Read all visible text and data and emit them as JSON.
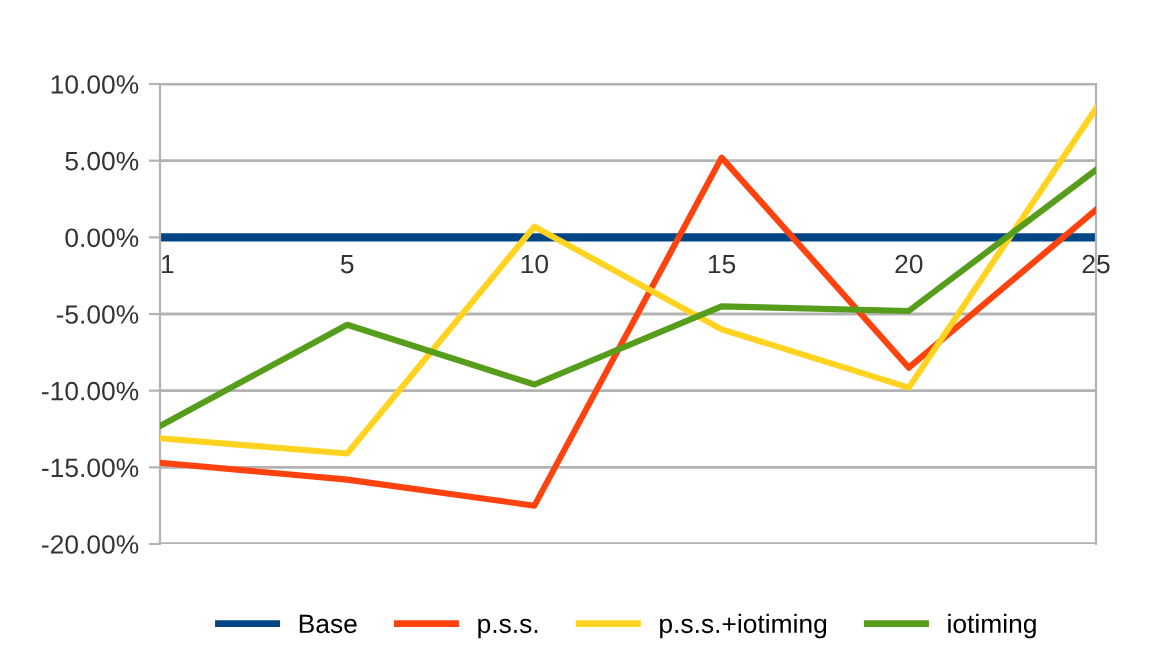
{
  "chart_data": {
    "type": "line",
    "categories": [
      "1",
      "5",
      "10",
      "15",
      "20",
      "25"
    ],
    "series": [
      {
        "name": "Base",
        "color": "#004586",
        "values": [
          0,
          0,
          0,
          0,
          0,
          0
        ]
      },
      {
        "name": "p.s.s.",
        "color": "#ff420e",
        "values": [
          -14.7,
          -15.8,
          -17.5,
          5.2,
          -8.5,
          1.8
        ]
      },
      {
        "name": "p.s.s.+iotiming",
        "color": "#ffd320",
        "values": [
          -13.1,
          -14.1,
          0.7,
          -6.0,
          -9.8,
          8.4
        ]
      },
      {
        "name": "iotiming",
        "color": "#579d1c",
        "values": [
          -12.3,
          -5.7,
          -9.6,
          -4.5,
          -4.8,
          4.4
        ]
      }
    ],
    "ylim": [
      -20,
      10
    ],
    "yticks": [
      {
        "value": -20,
        "label": "-20.00%"
      },
      {
        "value": -15,
        "label": "-15.00%"
      },
      {
        "value": -10,
        "label": "-10.00%"
      },
      {
        "value": -5,
        "label": "-5.00%"
      },
      {
        "value": 0,
        "label": "0.00%"
      },
      {
        "value": 5,
        "label": "5.00%"
      },
      {
        "value": 10,
        "label": "10.00%"
      }
    ],
    "grid": "y",
    "legend": "bottom",
    "marker": "none",
    "line_style": "solid"
  }
}
